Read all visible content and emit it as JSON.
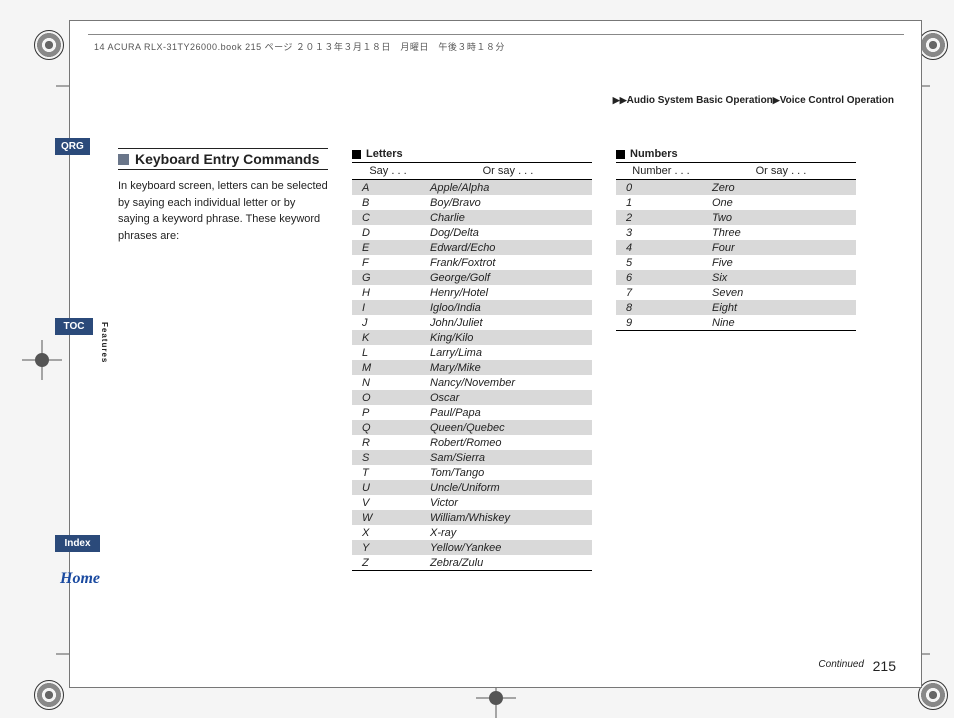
{
  "doc_header": "14 ACURA RLX-31TY26000.book  215 ページ  ２０１３年３月１８日　月曜日　午後３時１８分",
  "breadcrumb": {
    "sep": "▶▶",
    "part1": "Audio System Basic Operation",
    "sep2": "▶",
    "part2": "Voice Control Operation"
  },
  "sidebar": {
    "qrg": "QRG",
    "toc": "TOC",
    "features": "Features",
    "index": "Index",
    "home": "Home"
  },
  "section": {
    "title": "Keyboard Entry Commands",
    "body": "In keyboard screen, letters can be selected by saying each individual letter or by saying a keyword phrase. These keyword phrases are:"
  },
  "letters": {
    "title": "Letters",
    "head_col1": "Say . . .",
    "head_col2": "Or say . . .",
    "rows": [
      {
        "k": "A",
        "v": "Apple/Alpha"
      },
      {
        "k": "B",
        "v": "Boy/Bravo"
      },
      {
        "k": "C",
        "v": "Charlie"
      },
      {
        "k": "D",
        "v": "Dog/Delta"
      },
      {
        "k": "E",
        "v": "Edward/Echo"
      },
      {
        "k": "F",
        "v": "Frank/Foxtrot"
      },
      {
        "k": "G",
        "v": "George/Golf"
      },
      {
        "k": "H",
        "v": "Henry/Hotel"
      },
      {
        "k": "I",
        "v": "Igloo/India"
      },
      {
        "k": "J",
        "v": "John/Juliet"
      },
      {
        "k": "K",
        "v": "King/Kilo"
      },
      {
        "k": "L",
        "v": "Larry/Lima"
      },
      {
        "k": "M",
        "v": "Mary/Mike"
      },
      {
        "k": "N",
        "v": "Nancy/November"
      },
      {
        "k": "O",
        "v": "Oscar"
      },
      {
        "k": "P",
        "v": "Paul/Papa"
      },
      {
        "k": "Q",
        "v": "Queen/Quebec"
      },
      {
        "k": "R",
        "v": "Robert/Romeo"
      },
      {
        "k": "S",
        "v": "Sam/Sierra"
      },
      {
        "k": "T",
        "v": "Tom/Tango"
      },
      {
        "k": "U",
        "v": "Uncle/Uniform"
      },
      {
        "k": "V",
        "v": "Victor"
      },
      {
        "k": "W",
        "v": "William/Whiskey"
      },
      {
        "k": "X",
        "v": "X-ray"
      },
      {
        "k": "Y",
        "v": "Yellow/Yankee"
      },
      {
        "k": "Z",
        "v": "Zebra/Zulu"
      }
    ]
  },
  "numbers": {
    "title": "Numbers",
    "head_col1": "Number . . .",
    "head_col2": "Or say . . .",
    "rows": [
      {
        "k": "0",
        "v": "Zero"
      },
      {
        "k": "1",
        "v": "One"
      },
      {
        "k": "2",
        "v": "Two"
      },
      {
        "k": "3",
        "v": "Three"
      },
      {
        "k": "4",
        "v": "Four"
      },
      {
        "k": "5",
        "v": "Five"
      },
      {
        "k": "6",
        "v": "Six"
      },
      {
        "k": "7",
        "v": "Seven"
      },
      {
        "k": "8",
        "v": "Eight"
      },
      {
        "k": "9",
        "v": "Nine"
      }
    ]
  },
  "footer": {
    "continued": "Continued",
    "page": "215"
  },
  "style": {
    "shade_color": "#d9d9d9",
    "sidebar_bg": "#2b4a7a",
    "square_color": "#6a768a"
  }
}
